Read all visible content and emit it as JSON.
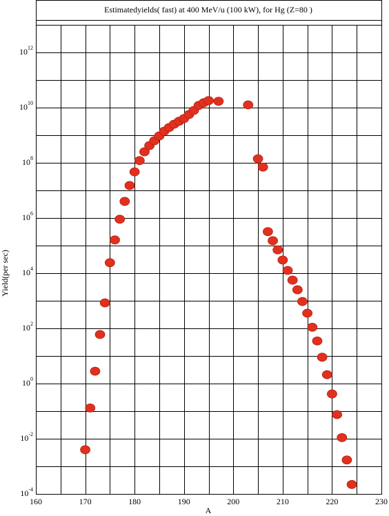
{
  "chart_data": {
    "type": "scatter",
    "title": "Estimatedyields( fast) at 400 MeV/u (100 kW), for Hg (Z=80 )",
    "xlabel": "A",
    "ylabel": "Yield(per sec)",
    "x": [
      170,
      171,
      172,
      173,
      174,
      175,
      176,
      177,
      178,
      179,
      180,
      181,
      182,
      183,
      184,
      185,
      186,
      187,
      188,
      189,
      190,
      191,
      192,
      193,
      194,
      195,
      197,
      203,
      205,
      206,
      207,
      208,
      209,
      210,
      211,
      212,
      213,
      214,
      215,
      216,
      217,
      218,
      219,
      220,
      221,
      222,
      223,
      224
    ],
    "values": [
      0.004,
      0.13,
      2.8,
      60,
      840,
      24000,
      160000,
      900000,
      4000000,
      15000000,
      47000000,
      120000000,
      250000000,
      420000000,
      630000000,
      940000000,
      1400000000,
      1900000000,
      2500000000,
      3200000000,
      4000000000,
      5600000000,
      7900000000,
      12000000000,
      15000000000,
      18000000000,
      17000000000,
      12600000000,
      140000000,
      70000000,
      320000,
      150000,
      70000,
      30000,
      12600,
      5600,
      2500,
      940,
      355,
      110,
      35,
      9,
      2.1,
      0.42,
      0.075,
      0.011,
      0.0017,
      0.00022
    ],
    "color": "#e2301f",
    "xlim": [
      160,
      230
    ],
    "xticks": [
      160,
      170,
      180,
      190,
      200,
      210,
      220,
      230
    ],
    "ylim": [
      0.0001,
      10000000000000
    ],
    "log_y": true,
    "grid": true,
    "yticks": [
      {
        "value": 0.0001,
        "label": "10",
        "sup": "-4"
      },
      {
        "value": 0.01,
        "label": "10",
        "sup": "-2"
      },
      {
        "value": 1,
        "label": "10",
        "sup": "0"
      },
      {
        "value": 100,
        "label": "10",
        "sup": "2"
      },
      {
        "value": 10000,
        "label": "10",
        "sup": "4"
      },
      {
        "value": 1000000,
        "label": "10",
        "sup": "6"
      },
      {
        "value": 100000000,
        "label": "10",
        "sup": "8"
      },
      {
        "value": 10000000000,
        "label": "10",
        "sup": "10"
      },
      {
        "value": 1000000000000,
        "label": "10",
        "sup": "12"
      }
    ]
  }
}
